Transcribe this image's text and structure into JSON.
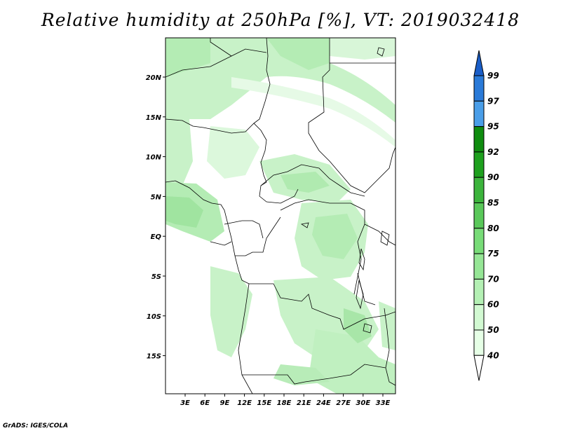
{
  "title": "Relative humidity at 250hPa [%], VT: 2019032418",
  "footer": "GrADS: IGES/COLA",
  "chart_data": {
    "type": "heatmap",
    "title": "Relative humidity at 250hPa [%], VT: 2019032418",
    "variable": "Relative humidity",
    "level": "250hPa",
    "units": "%",
    "valid_time": "2019032418",
    "lon_ticks": [
      "3E",
      "6E",
      "9E",
      "12E",
      "15E",
      "18E",
      "21E",
      "24E",
      "27E",
      "30E",
      "33E"
    ],
    "lat_ticks": [
      "20N",
      "15N",
      "10N",
      "5N",
      "EQ",
      "5S",
      "10S",
      "15S"
    ],
    "colorbar": {
      "levels": [
        "40",
        "50",
        "60",
        "70",
        "75",
        "80",
        "85",
        "90",
        "92",
        "95",
        "97",
        "99"
      ],
      "colors": [
        "#ffffff",
        "#e6ffe6",
        "#d2f9d2",
        "#b4f0b4",
        "#96e696",
        "#78dc78",
        "#5ac85a",
        "#3cb43c",
        "#1ea01e",
        "#0f8c0f",
        "#4a9ee8",
        "#2a7ad8",
        "#1a5ec8"
      ]
    }
  }
}
